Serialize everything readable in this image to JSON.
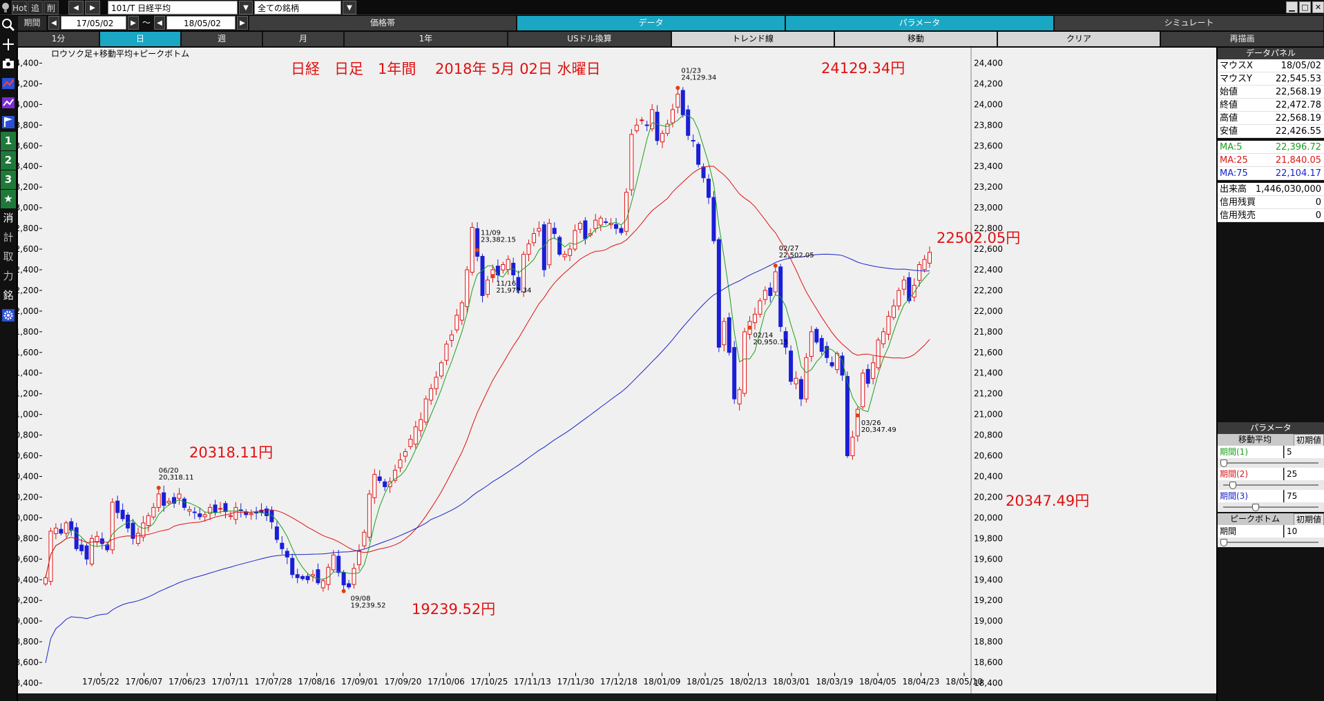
{
  "topbar": {
    "hot": "Hot",
    "add": "追",
    "del": "削",
    "symbol": "101/T 日経平均",
    "universe": "全ての銘柄"
  },
  "row2": {
    "period_label": "期間",
    "date_from": "17/05/02",
    "tilde": "～",
    "date_to": "18/05/02",
    "tabs": [
      "価格帯",
      "データ",
      "パラメータ",
      "シミュレート"
    ]
  },
  "row3": {
    "tabs": [
      "1分",
      "日",
      "週",
      "月",
      "1年",
      "USドル換算",
      "トレンド線",
      "移動",
      "クリア",
      "再描画"
    ]
  },
  "leftstrip": {
    "num1": "1",
    "num2": "2",
    "num3": "3",
    "k1": "消",
    "k2": "計",
    "k3": "取",
    "k4": "力",
    "k5": "銘"
  },
  "chart": {
    "caption": "ロウソク足+移動平均+ピークボトム",
    "headline": "日経　日足　1年間　 2018年 5月 02日 水曜日",
    "annotations": {
      "a1": "20318.11円",
      "a2": "19239.52円",
      "a3": "24129.34円",
      "a4": "22502.05円",
      "a5": "20347.49円"
    },
    "peaks": [
      {
        "date": "06/20",
        "value": "20,318.11"
      },
      {
        "date": "09/08",
        "value": "19,239.52"
      },
      {
        "date": "11/09",
        "value": "23,382.15"
      },
      {
        "date": "11/16",
        "value": "21,972.34"
      },
      {
        "date": "01/23",
        "value": "24,129.34"
      },
      {
        "date": "02/14",
        "value": "20,950.15"
      },
      {
        "date": "02/27",
        "value": "22,502.05"
      },
      {
        "date": "03/26",
        "value": "20,347.49"
      }
    ]
  },
  "chart_data": {
    "type": "candlestick",
    "ylim": [
      18300,
      24550
    ],
    "y_ticks": [
      24400,
      24200,
      24000,
      23800,
      23600,
      23400,
      23200,
      23000,
      22800,
      22600,
      22400,
      22200,
      22000,
      21800,
      21600,
      21400,
      21200,
      21000,
      20800,
      20600,
      20400,
      20200,
      20000,
      19800,
      19600,
      19400,
      19200,
      19000,
      18800,
      18600,
      18400
    ],
    "y_tick_labels": [
      "24,400",
      "24,200",
      "24,000",
      "23,800",
      "23,600",
      "23,400",
      "23,200",
      "23,000",
      "22,800",
      "22,600",
      "22,400",
      "22,200",
      "22,000",
      "21,800",
      "21,600",
      "21,400",
      "21,200",
      "21,000",
      "20,800",
      "20,600",
      "20,400",
      "20,200",
      "20,000",
      "19,800",
      "19,600",
      "19,400",
      "19,200",
      "19,000",
      "18,800",
      "18,600",
      "18,400"
    ],
    "x_tick_labels": [
      "17/05/22",
      "17/06/07",
      "17/06/23",
      "17/07/11",
      "17/07/28",
      "17/08/16",
      "17/09/01",
      "17/09/20",
      "17/10/06",
      "17/10/25",
      "17/11/13",
      "17/11/30",
      "17/12/18",
      "18/01/09",
      "18/01/25",
      "18/02/13",
      "18/03/01",
      "18/03/19",
      "18/04/05",
      "18/04/23",
      "18/05/10"
    ],
    "series_close": [
      19420,
      19870,
      19900,
      19850,
      19950,
      19880,
      19700,
      19680,
      19600,
      19800,
      19820,
      19750,
      19690,
      20150,
      20050,
      19990,
      19900,
      19800,
      19850,
      19950,
      20020,
      20100,
      20230,
      20120,
      20160,
      20140,
      20230,
      20100,
      20080,
      20050,
      20010,
      20030,
      20100,
      20050,
      20090,
      20060,
      20020,
      20100,
      20070,
      20030,
      20040,
      20050,
      20050,
      20020,
      19960,
      19790,
      19700,
      19620,
      19450,
      19420,
      19410,
      19400,
      19450,
      19370,
      19390,
      19520,
      19640,
      19470,
      19350,
      19330,
      19510,
      19680,
      19860,
      20230,
      20420,
      20360,
      20300,
      20350,
      20460,
      20560,
      20640,
      20760,
      20880,
      20950,
      21150,
      21250,
      21360,
      21500,
      21680,
      21770,
      21960,
      22080,
      22400,
      22810,
      22530,
      22150,
      22300,
      22400,
      22350,
      22450,
      22500,
      22350,
      22200,
      22550,
      22650,
      22750,
      22800,
      22400,
      22850,
      22750,
      22550,
      22550,
      22600,
      22780,
      22850,
      22700,
      22750,
      22880,
      22900,
      22860,
      22850,
      22800,
      22760,
      23150,
      23710,
      23800,
      23850,
      23800,
      23950,
      23650,
      23720,
      23810,
      23950,
      24100,
      23900,
      23700,
      23650,
      23420,
      23290,
      23100,
      22680,
      21650,
      21900,
      21600,
      21150,
      21240,
      21800,
      21900,
      21970,
      22100,
      22200,
      22150,
      22380,
      21850,
      21650,
      21320,
      21350,
      21150,
      21550,
      21800,
      21700,
      21610,
      21550,
      21470,
      21590,
      21380,
      20600,
      20780,
      21050,
      21400,
      21300,
      21500,
      21720,
      21800,
      21950,
      22050,
      22200,
      22300,
      22100,
      22250,
      22450,
      22500,
      22570
    ],
    "ma5_label": "MA:5",
    "ma25_label": "MA:25",
    "ma75_label": "MA:75"
  },
  "panel": {
    "data_head": "データパネル",
    "rows": [
      {
        "k": "マウスX",
        "v": "18/05/02"
      },
      {
        "k": "マウスY",
        "v": "22,545.53"
      },
      {
        "k": "始値",
        "v": "22,568.19"
      },
      {
        "k": "終値",
        "v": "22,472.78"
      },
      {
        "k": "高値",
        "v": "22,568.19"
      },
      {
        "k": "安値",
        "v": "22,426.55"
      }
    ],
    "ma": [
      {
        "k": "MA:5",
        "v": "22,396.72"
      },
      {
        "k": "MA:25",
        "v": "21,840.05"
      },
      {
        "k": "MA:75",
        "v": "22,104.17"
      }
    ],
    "vol": [
      {
        "k": "出来高",
        "v": "1,446,030,000"
      },
      {
        "k": "信用残買",
        "v": "0"
      },
      {
        "k": "信用残売",
        "v": "0"
      }
    ],
    "param_head": "パラメータ",
    "ma_head": "移動平均",
    "reset": "初期値",
    "params": [
      {
        "k": "期間(1)",
        "v": "5",
        "knob": 0.0
      },
      {
        "k": "期間(2)",
        "v": "25",
        "knob": 0.1
      },
      {
        "k": "期間(3)",
        "v": "75",
        "knob": 0.35
      }
    ],
    "pb_head": "ピークボトム",
    "pb_param": {
      "k": "期間",
      "v": "10",
      "knob": 0.0
    }
  },
  "colors": {
    "up": "#e01010",
    "down": "#1a1fd6",
    "ma5": "#1a9f1a",
    "ma25": "#e01010",
    "ma75": "#1a22c8"
  }
}
